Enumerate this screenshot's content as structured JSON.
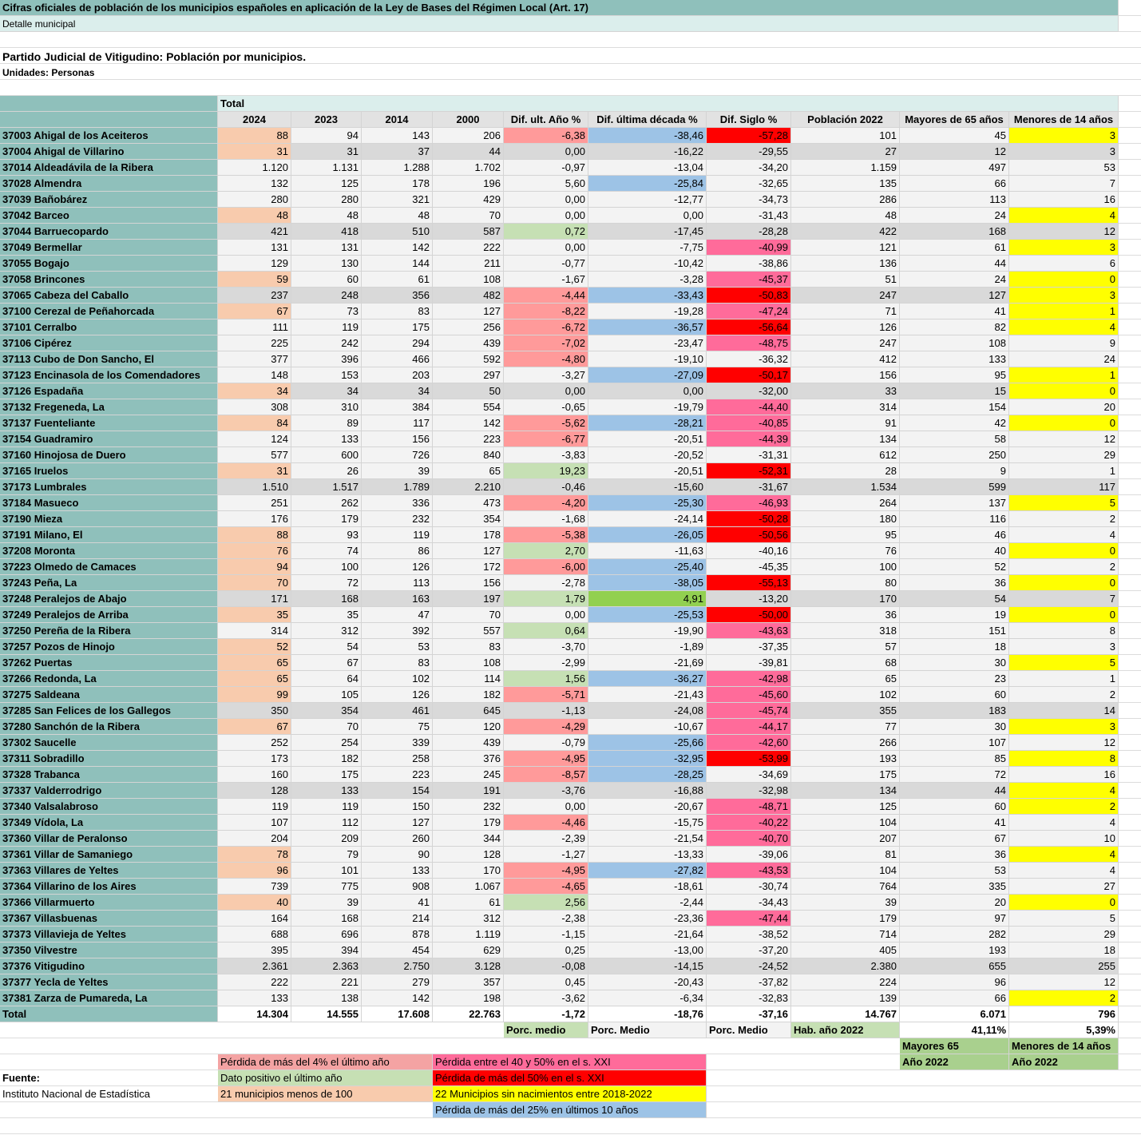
{
  "header": {
    "title": "Cifras oficiales de población de los municipios españoles en aplicación de la Ley de Bases del Régimen Local (Art. 17)",
    "subtitle": "Detalle municipal"
  },
  "report": {
    "heading": "Partido Judicial de Vitigudino: Población por municipios.",
    "units": "Unidades: Personas"
  },
  "table": {
    "group_header": "Total",
    "columns": [
      "2024",
      "2023",
      "2014",
      "2000",
      "Dif. ult. Año %",
      "Dif. última década %",
      "Dif. Siglo %",
      "Población 2022",
      "Mayores de 65 años",
      "Menores de 14 años"
    ],
    "rows": [
      [
        "37003 Ahigal de los Aceiteros",
        "88",
        "94",
        "143",
        "206",
        "-6,38",
        "-38,46",
        "-57,28",
        "101",
        "45",
        "3"
      ],
      [
        "37004 Ahigal de Villarino",
        "31",
        "31",
        "37",
        "44",
        "0,00",
        "-16,22",
        "-29,55",
        "27",
        "12",
        "3"
      ],
      [
        "37014 Aldeadávila de la Ribera",
        "1.120",
        "1.131",
        "1.288",
        "1.702",
        "-0,97",
        "-13,04",
        "-34,20",
        "1.159",
        "497",
        "53"
      ],
      [
        "37028 Almendra",
        "132",
        "125",
        "178",
        "196",
        "5,60",
        "-25,84",
        "-32,65",
        "135",
        "66",
        "7"
      ],
      [
        "37039 Bañobárez",
        "280",
        "280",
        "321",
        "429",
        "0,00",
        "-12,77",
        "-34,73",
        "286",
        "113",
        "16"
      ],
      [
        "37042 Barceo",
        "48",
        "48",
        "48",
        "70",
        "0,00",
        "0,00",
        "-31,43",
        "48",
        "24",
        "4"
      ],
      [
        "37044 Barruecopardo",
        "421",
        "418",
        "510",
        "587",
        "0,72",
        "-17,45",
        "-28,28",
        "422",
        "168",
        "12"
      ],
      [
        "37049 Bermellar",
        "131",
        "131",
        "142",
        "222",
        "0,00",
        "-7,75",
        "-40,99",
        "121",
        "61",
        "3"
      ],
      [
        "37055 Bogajo",
        "129",
        "130",
        "144",
        "211",
        "-0,77",
        "-10,42",
        "-38,86",
        "136",
        "44",
        "6"
      ],
      [
        "37058 Brincones",
        "59",
        "60",
        "61",
        "108",
        "-1,67",
        "-3,28",
        "-45,37",
        "51",
        "24",
        "0"
      ],
      [
        "37065 Cabeza del Caballo",
        "237",
        "248",
        "356",
        "482",
        "-4,44",
        "-33,43",
        "-50,83",
        "247",
        "127",
        "3"
      ],
      [
        "37100 Cerezal de Peñahorcada",
        "67",
        "73",
        "83",
        "127",
        "-8,22",
        "-19,28",
        "-47,24",
        "71",
        "41",
        "1"
      ],
      [
        "37101 Cerralbo",
        "111",
        "119",
        "175",
        "256",
        "-6,72",
        "-36,57",
        "-56,64",
        "126",
        "82",
        "4"
      ],
      [
        "37106 Cipérez",
        "225",
        "242",
        "294",
        "439",
        "-7,02",
        "-23,47",
        "-48,75",
        "247",
        "108",
        "9"
      ],
      [
        "37113 Cubo de Don Sancho, El",
        "377",
        "396",
        "466",
        "592",
        "-4,80",
        "-19,10",
        "-36,32",
        "412",
        "133",
        "24"
      ],
      [
        "37123 Encinasola de los Comendadores",
        "148",
        "153",
        "203",
        "297",
        "-3,27",
        "-27,09",
        "-50,17",
        "156",
        "95",
        "1"
      ],
      [
        "37126 Espadaña",
        "34",
        "34",
        "34",
        "50",
        "0,00",
        "0,00",
        "-32,00",
        "33",
        "15",
        "0"
      ],
      [
        "37132 Fregeneda, La",
        "308",
        "310",
        "384",
        "554",
        "-0,65",
        "-19,79",
        "-44,40",
        "314",
        "154",
        "20"
      ],
      [
        "37137 Fuenteliante",
        "84",
        "89",
        "117",
        "142",
        "-5,62",
        "-28,21",
        "-40,85",
        "91",
        "42",
        "0"
      ],
      [
        "37154 Guadramiro",
        "124",
        "133",
        "156",
        "223",
        "-6,77",
        "-20,51",
        "-44,39",
        "134",
        "58",
        "12"
      ],
      [
        "37160 Hinojosa de Duero",
        "577",
        "600",
        "726",
        "840",
        "-3,83",
        "-20,52",
        "-31,31",
        "612",
        "250",
        "29"
      ],
      [
        "37165 Iruelos",
        "31",
        "26",
        "39",
        "65",
        "19,23",
        "-20,51",
        "-52,31",
        "28",
        "9",
        "1"
      ],
      [
        "37173 Lumbrales",
        "1.510",
        "1.517",
        "1.789",
        "2.210",
        "-0,46",
        "-15,60",
        "-31,67",
        "1.534",
        "599",
        "117"
      ],
      [
        "37184 Masueco",
        "251",
        "262",
        "336",
        "473",
        "-4,20",
        "-25,30",
        "-46,93",
        "264",
        "137",
        "5"
      ],
      [
        "37190 Mieza",
        "176",
        "179",
        "232",
        "354",
        "-1,68",
        "-24,14",
        "-50,28",
        "180",
        "116",
        "2"
      ],
      [
        "37191 Milano, El",
        "88",
        "93",
        "119",
        "178",
        "-5,38",
        "-26,05",
        "-50,56",
        "95",
        "46",
        "4"
      ],
      [
        "37208 Moronta",
        "76",
        "74",
        "86",
        "127",
        "2,70",
        "-11,63",
        "-40,16",
        "76",
        "40",
        "0"
      ],
      [
        "37223 Olmedo de Camaces",
        "94",
        "100",
        "126",
        "172",
        "-6,00",
        "-25,40",
        "-45,35",
        "100",
        "52",
        "2"
      ],
      [
        "37243 Peña, La",
        "70",
        "72",
        "113",
        "156",
        "-2,78",
        "-38,05",
        "-55,13",
        "80",
        "36",
        "0"
      ],
      [
        "37248 Peralejos de Abajo",
        "171",
        "168",
        "163",
        "197",
        "1,79",
        "4,91",
        "-13,20",
        "170",
        "54",
        "7"
      ],
      [
        "37249 Peralejos de Arriba",
        "35",
        "35",
        "47",
        "70",
        "0,00",
        "-25,53",
        "-50,00",
        "36",
        "19",
        "0"
      ],
      [
        "37250 Pereña de la Ribera",
        "314",
        "312",
        "392",
        "557",
        "0,64",
        "-19,90",
        "-43,63",
        "318",
        "151",
        "8"
      ],
      [
        "37257 Pozos de Hinojo",
        "52",
        "54",
        "53",
        "83",
        "-3,70",
        "-1,89",
        "-37,35",
        "57",
        "18",
        "3"
      ],
      [
        "37262 Puertas",
        "65",
        "67",
        "83",
        "108",
        "-2,99",
        "-21,69",
        "-39,81",
        "68",
        "30",
        "5"
      ],
      [
        "37266 Redonda, La",
        "65",
        "64",
        "102",
        "114",
        "1,56",
        "-36,27",
        "-42,98",
        "65",
        "23",
        "1"
      ],
      [
        "37275 Saldeana",
        "99",
        "105",
        "126",
        "182",
        "-5,71",
        "-21,43",
        "-45,60",
        "102",
        "60",
        "2"
      ],
      [
        "37285 San Felices de los Gallegos",
        "350",
        "354",
        "461",
        "645",
        "-1,13",
        "-24,08",
        "-45,74",
        "355",
        "183",
        "14"
      ],
      [
        "37280 Sanchón de la Ribera",
        "67",
        "70",
        "75",
        "120",
        "-4,29",
        "-10,67",
        "-44,17",
        "77",
        "30",
        "3"
      ],
      [
        "37302 Saucelle",
        "252",
        "254",
        "339",
        "439",
        "-0,79",
        "-25,66",
        "-42,60",
        "266",
        "107",
        "12"
      ],
      [
        "37311 Sobradillo",
        "173",
        "182",
        "258",
        "376",
        "-4,95",
        "-32,95",
        "-53,99",
        "193",
        "85",
        "8"
      ],
      [
        "37328 Trabanca",
        "160",
        "175",
        "223",
        "245",
        "-8,57",
        "-28,25",
        "-34,69",
        "175",
        "72",
        "16"
      ],
      [
        "37337 Valderrodrigo",
        "128",
        "133",
        "154",
        "191",
        "-3,76",
        "-16,88",
        "-32,98",
        "134",
        "44",
        "4"
      ],
      [
        "37340 Valsalabroso",
        "119",
        "119",
        "150",
        "232",
        "0,00",
        "-20,67",
        "-48,71",
        "125",
        "60",
        "2"
      ],
      [
        "37349 Vídola, La",
        "107",
        "112",
        "127",
        "179",
        "-4,46",
        "-15,75",
        "-40,22",
        "104",
        "41",
        "4"
      ],
      [
        "37360 Villar de Peralonso",
        "204",
        "209",
        "260",
        "344",
        "-2,39",
        "-21,54",
        "-40,70",
        "207",
        "67",
        "10"
      ],
      [
        "37361 Villar de Samaniego",
        "78",
        "79",
        "90",
        "128",
        "-1,27",
        "-13,33",
        "-39,06",
        "81",
        "36",
        "4"
      ],
      [
        "37363 Villares de Yeltes",
        "96",
        "101",
        "133",
        "170",
        "-4,95",
        "-27,82",
        "-43,53",
        "104",
        "53",
        "4"
      ],
      [
        "37364 Villarino de los Aires",
        "739",
        "775",
        "908",
        "1.067",
        "-4,65",
        "-18,61",
        "-30,74",
        "764",
        "335",
        "27"
      ],
      [
        "37366 Villarmuerto",
        "40",
        "39",
        "41",
        "61",
        "2,56",
        "-2,44",
        "-34,43",
        "39",
        "20",
        "0"
      ],
      [
        "37367 Villasbuenas",
        "164",
        "168",
        "214",
        "312",
        "-2,38",
        "-23,36",
        "-47,44",
        "179",
        "97",
        "5"
      ],
      [
        "37373 Villavieja de Yeltes",
        "688",
        "696",
        "878",
        "1.119",
        "-1,15",
        "-21,64",
        "-38,52",
        "714",
        "282",
        "29"
      ],
      [
        "37350 Vilvestre",
        "395",
        "394",
        "454",
        "629",
        "0,25",
        "-13,00",
        "-37,20",
        "405",
        "193",
        "18"
      ],
      [
        "37376 Vitigudino",
        "2.361",
        "2.363",
        "2.750",
        "3.128",
        "-0,08",
        "-14,15",
        "-24,52",
        "2.380",
        "655",
        "255"
      ],
      [
        "37377 Yecla de Yeltes",
        "222",
        "221",
        "279",
        "357",
        "0,45",
        "-20,43",
        "-37,82",
        "224",
        "96",
        "12"
      ],
      [
        "37381 Zarza de Pumareda, La",
        "133",
        "138",
        "142",
        "198",
        "-3,62",
        "-6,34",
        "-32,83",
        "139",
        "66",
        "2"
      ]
    ],
    "total": [
      "Total",
      "14.304",
      "14.555",
      "17.608",
      "22.763",
      "-1,72",
      "-18,76",
      "-37,16",
      "14.767",
      "6.071",
      "796"
    ]
  },
  "summary": {
    "labels": [
      "Porc. medio",
      "Porc. Medio",
      "Porc. Medio",
      "Hab. año 2022"
    ],
    "pct_mayores": "41,11%",
    "pct_menores": "5,39%"
  },
  "age_notes": [
    [
      "Mayores 65",
      "Año 2022"
    ],
    [
      "Menores de 14 años",
      "Año 2022"
    ]
  ],
  "legend": [
    "Pérdida de más del 4% el último año",
    "Pérdida entre el 40 y 50% en el s. XXI",
    "Dato positivo el último año",
    "Pérdida de más del 50% en el s. XXI",
    "21 municipios  menos de 100",
    "22 Municipios sin nacimientos entre 2018-2022",
    "Pérdida de más del 25% en últimos 10 años"
  ],
  "source": {
    "label": "Fuente:",
    "name": "Instituto Nacional de Estadística"
  }
}
